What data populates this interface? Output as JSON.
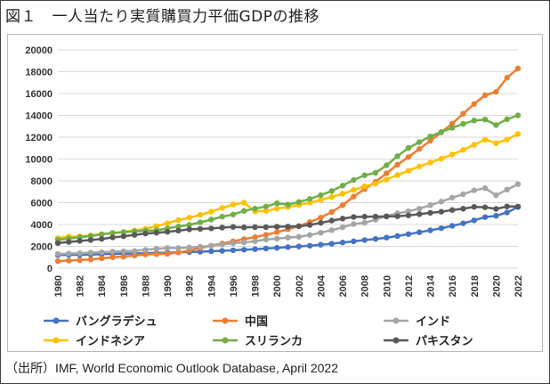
{
  "title": "図１　一人当たり実質購買力平価GDPの推移",
  "source": "（出所）IMF, World Economic Outlook Database, April 2022",
  "chart_data": {
    "type": "line",
    "title": "",
    "xlabel": "",
    "ylabel": "",
    "ylim": [
      0,
      20000
    ],
    "yticks": [
      0,
      2000,
      4000,
      6000,
      8000,
      10000,
      12000,
      14000,
      16000,
      18000,
      20000
    ],
    "xticks": [
      1980,
      1982,
      1984,
      1986,
      1988,
      1990,
      1992,
      1994,
      1996,
      1998,
      2000,
      2002,
      2004,
      2006,
      2008,
      2010,
      2012,
      2014,
      2016,
      2018,
      2020,
      2022
    ],
    "x": [
      1980,
      1981,
      1982,
      1983,
      1984,
      1985,
      1986,
      1987,
      1988,
      1989,
      1990,
      1991,
      1992,
      1993,
      1994,
      1995,
      1996,
      1997,
      1998,
      1999,
      2000,
      2001,
      2002,
      2003,
      2004,
      2005,
      2006,
      2007,
      2008,
      2009,
      2010,
      2011,
      2012,
      2013,
      2014,
      2015,
      2016,
      2017,
      2018,
      2019,
      2020,
      2021,
      2022
    ],
    "grid": true,
    "legend_position": "bottom",
    "series": [
      {
        "name": "バングラデシュ",
        "color": "#4472C4",
        "values": [
          1200,
          1220,
          1230,
          1250,
          1280,
          1310,
          1330,
          1350,
          1370,
          1390,
          1420,
          1450,
          1480,
          1510,
          1550,
          1590,
          1640,
          1690,
          1740,
          1800,
          1870,
          1930,
          1990,
          2060,
          2150,
          2240,
          2350,
          2460,
          2580,
          2680,
          2800,
          2950,
          3120,
          3290,
          3470,
          3660,
          3880,
          4110,
          4380,
          4680,
          4800,
          5100,
          5600
        ]
      },
      {
        "name": "中国",
        "color": "#ED7D31",
        "values": [
          650,
          690,
          740,
          800,
          900,
          1000,
          1060,
          1160,
          1260,
          1290,
          1320,
          1430,
          1620,
          1840,
          2070,
          2260,
          2460,
          2660,
          2850,
          3060,
          3300,
          3560,
          3860,
          4220,
          4630,
          5140,
          5770,
          6560,
          7250,
          7910,
          8700,
          9480,
          10180,
          10920,
          11670,
          12450,
          13250,
          14150,
          15050,
          15850,
          16150,
          17450,
          18300
        ]
      },
      {
        "name": "インド",
        "color": "#A5A5A5",
        "values": [
          1300,
          1340,
          1370,
          1420,
          1460,
          1510,
          1550,
          1580,
          1680,
          1770,
          1850,
          1840,
          1900,
          1960,
          2050,
          2170,
          2290,
          2360,
          2470,
          2630,
          2710,
          2800,
          2870,
          3040,
          3250,
          3480,
          3750,
          4040,
          4160,
          4440,
          4780,
          5020,
          5210,
          5450,
          5770,
          6100,
          6460,
          6780,
          7130,
          7330,
          6680,
          7200,
          7700
        ]
      },
      {
        "name": "インドネシア",
        "color": "#FFC000",
        "values": [
          2750,
          2900,
          2910,
          3000,
          3120,
          3180,
          3320,
          3450,
          3600,
          3850,
          4120,
          4400,
          4630,
          4880,
          5180,
          5520,
          5830,
          6000,
          5200,
          5250,
          5450,
          5600,
          5800,
          6000,
          6250,
          6530,
          6820,
          7160,
          7500,
          7740,
          8120,
          8530,
          8930,
          9320,
          9670,
          10030,
          10420,
          10830,
          11300,
          11780,
          11450,
          11790,
          12300
        ]
      },
      {
        "name": "スリランカ",
        "color": "#70AD47",
        "values": [
          2600,
          2720,
          2840,
          2950,
          3100,
          3230,
          3310,
          3380,
          3430,
          3470,
          3640,
          3820,
          3970,
          4200,
          4450,
          4720,
          4920,
          5250,
          5450,
          5650,
          5940,
          5830,
          6070,
          6340,
          6690,
          7070,
          7570,
          8080,
          8510,
          8740,
          9430,
          10260,
          11010,
          11550,
          12070,
          12470,
          12860,
          13230,
          13530,
          13620,
          13110,
          13650,
          14000
        ]
      },
      {
        "name": "パキスタン",
        "color": "#595959",
        "values": [
          2300,
          2400,
          2500,
          2580,
          2680,
          2820,
          2920,
          3050,
          3170,
          3250,
          3330,
          3440,
          3560,
          3600,
          3640,
          3720,
          3780,
          3740,
          3760,
          3760,
          3800,
          3810,
          3840,
          3960,
          4150,
          4360,
          4540,
          4690,
          4720,
          4730,
          4740,
          4760,
          4840,
          4950,
          5070,
          5170,
          5330,
          5450,
          5620,
          5580,
          5430,
          5650,
          5650
        ]
      }
    ]
  }
}
